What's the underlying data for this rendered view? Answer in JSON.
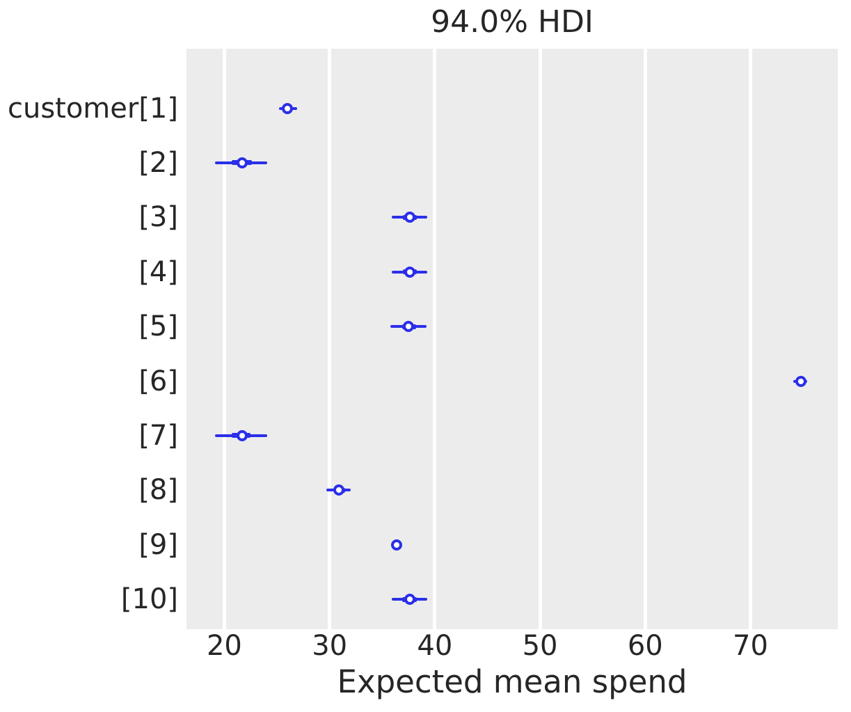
{
  "chart_data": {
    "type": "forest",
    "title": "94.0% HDI",
    "xlabel": "Expected mean spend",
    "xlim": [
      16.4,
      78.3
    ],
    "x_ticks": [
      "20",
      "30",
      "40",
      "50",
      "60",
      "70"
    ],
    "grid": "vertical-only",
    "legend": "none",
    "colors": {
      "interval": "#2b2fe8",
      "marker_face": "#ffffff",
      "plot_background": "#ececec",
      "grid_line": "#ffffff",
      "text": "#262626",
      "figure_background": "#ffffff"
    },
    "rows": [
      {
        "label": "customer[1]",
        "median": 26.0,
        "hdi": [
          25.2,
          26.9
        ],
        "iqr": [
          25.7,
          26.4
        ]
      },
      {
        "label": "[2]",
        "median": 21.7,
        "hdi": [
          19.1,
          24.1
        ],
        "iqr": [
          20.7,
          22.6
        ]
      },
      {
        "label": "[3]",
        "median": 37.6,
        "hdi": [
          35.9,
          39.3
        ],
        "iqr": [
          37.0,
          38.3
        ]
      },
      {
        "label": "[4]",
        "median": 37.6,
        "hdi": [
          35.9,
          39.3
        ],
        "iqr": [
          37.0,
          38.3
        ]
      },
      {
        "label": "[5]",
        "median": 37.5,
        "hdi": [
          35.8,
          39.2
        ],
        "iqr": [
          36.9,
          38.2
        ]
      },
      {
        "label": "[6]",
        "median": 74.8,
        "hdi": [
          74.1,
          75.4
        ],
        "iqr": [
          74.4,
          75.1
        ]
      },
      {
        "label": "[7]",
        "median": 21.7,
        "hdi": [
          19.1,
          24.1
        ],
        "iqr": [
          20.7,
          22.5
        ]
      },
      {
        "label": "[8]",
        "median": 30.9,
        "hdi": [
          29.7,
          32.0
        ],
        "iqr": [
          30.4,
          31.5
        ]
      },
      {
        "label": "[9]",
        "median": 36.4,
        "hdi": [
          36.1,
          36.7
        ],
        "iqr": [
          36.2,
          36.6
        ]
      },
      {
        "label": "[10]",
        "median": 37.6,
        "hdi": [
          35.9,
          39.3
        ],
        "iqr": [
          36.9,
          38.3
        ]
      }
    ]
  }
}
